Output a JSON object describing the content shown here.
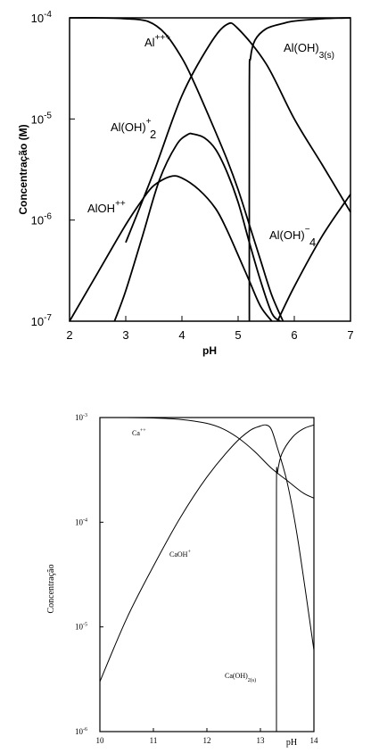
{
  "chart_data": [
    {
      "type": "line",
      "title": "",
      "xlabel": "pH",
      "ylabel": "Concentração (M)",
      "xlim": [
        2,
        7
      ],
      "ylim": [
        1e-07,
        0.0001
      ],
      "yscale": "log",
      "x_ticks": [
        "2",
        "3",
        "4",
        "5",
        "6",
        "7"
      ],
      "y_ticks": [
        {
          "base": "10",
          "exp": "-7"
        },
        {
          "base": "10",
          "exp": "-6"
        },
        {
          "base": "10",
          "exp": "-5"
        },
        {
          "base": "10",
          "exp": "-4"
        }
      ],
      "grid": false,
      "series": [
        {
          "name": "Al+++",
          "label": {
            "main": "Al",
            "sup": "+++",
            "sub": ""
          },
          "color": "#000000",
          "x": [
            2.0,
            2.5,
            3.0,
            3.4,
            3.7,
            4.0,
            4.2,
            4.5,
            4.8,
            5.0,
            5.2,
            5.4,
            5.6,
            5.8
          ],
          "y": [
            0.0001,
            0.0001,
            9.8e-05,
            9.2e-05,
            7e-05,
            4e-05,
            2.4e-05,
            1e-05,
            4e-06,
            2e-06,
            9e-07,
            4e-07,
            1.8e-07,
            1e-07
          ]
        },
        {
          "name": "AlOH++",
          "label": {
            "main": "AlOH",
            "sup": "++",
            "sub": ""
          },
          "color": "#000000",
          "x": [
            2.0,
            2.5,
            3.0,
            3.3,
            3.5,
            3.8,
            4.0,
            4.3,
            4.6,
            4.8,
            5.0,
            5.2,
            5.4,
            5.6
          ],
          "y": [
            1e-07,
            3e-07,
            9e-07,
            1.6e-06,
            2.2e-06,
            2.7e-06,
            2.6e-06,
            2e-06,
            1.3e-06,
            8e-07,
            4.5e-07,
            2.5e-07,
            1.4e-07,
            1e-07
          ]
        },
        {
          "name": "Al(OH)2+",
          "label": {
            "main": "Al(OH)",
            "sup": "+",
            "sub": "2"
          },
          "color": "#000000",
          "x": [
            2.8,
            3.0,
            3.3,
            3.6,
            3.9,
            4.1,
            4.2,
            4.4,
            4.6,
            4.8,
            5.0,
            5.2,
            5.4,
            5.6,
            5.75
          ],
          "y": [
            1e-07,
            2e-07,
            7e-07,
            2.5e-06,
            5.5e-06,
            7e-06,
            7.1e-06,
            6.5e-06,
            5e-06,
            3e-06,
            1.5e-06,
            6e-07,
            2.5e-07,
            1.2e-07,
            1e-07
          ]
        },
        {
          "name": "Al(OH)4-",
          "label": {
            "main": "Al(OH)",
            "sup": "−",
            "sub": "4"
          },
          "color": "#000000",
          "x": [
            3.0,
            3.5,
            4.0,
            4.5,
            4.8,
            5.0,
            5.5,
            6.0,
            6.5,
            7.0
          ],
          "y": [
            6e-07,
            3e-06,
            1.7e-05,
            5.5e-05,
            8.6e-05,
            7.8e-05,
            3.5e-05,
            1e-05,
            3.5e-06,
            1.2e-06
          ]
        },
        {
          "name": "Al(OH)3(s)",
          "label": {
            "main": "Al(OH)",
            "sup": "",
            "sub": "3(s)"
          },
          "color": "#000000",
          "x": [
            5.2,
            5.2,
            5.22,
            5.3,
            5.5,
            5.8,
            6.0,
            6.5,
            7.0
          ],
          "y": [
            1e-07,
            2e-05,
            4e-05,
            6e-05,
            7.8e-05,
            8.8e-05,
            9.3e-05,
            9.8e-05,
            0.0001
          ]
        },
        {
          "name": "",
          "label": {
            "main": "",
            "sup": "",
            "sub": ""
          },
          "color": "#000000",
          "x": [
            5.7,
            6.0,
            6.5,
            7.0
          ],
          "y": [
            1e-07,
            2.2e-07,
            7e-07,
            1.8e-06
          ]
        }
      ]
    },
    {
      "type": "line",
      "title": "",
      "xlabel": "pH",
      "ylabel": "Concentração",
      "xlim": [
        10,
        14
      ],
      "ylim": [
        1e-06,
        0.001
      ],
      "yscale": "log",
      "x_ticks": [
        "10",
        "11",
        "12",
        "13",
        "14"
      ],
      "y_ticks": [
        {
          "base": "10",
          "exp": "-6"
        },
        {
          "base": "10",
          "exp": "-5"
        },
        {
          "base": "10",
          "exp": "-4"
        },
        {
          "base": "10",
          "exp": "-3"
        }
      ],
      "grid": false,
      "series": [
        {
          "name": "Ca++",
          "label": {
            "main": "Ca",
            "sup": "++",
            "sub": ""
          },
          "color": "#000000",
          "x": [
            10.0,
            10.5,
            11.0,
            11.5,
            12.0,
            12.3,
            12.6,
            12.9,
            13.2,
            13.5,
            13.8,
            14.0
          ],
          "y": [
            0.001,
            0.001,
            0.00099,
            0.00096,
            0.00088,
            0.00078,
            0.00063,
            0.00047,
            0.00033,
            0.00025,
            0.00019,
            0.00017
          ]
        },
        {
          "name": "CaOH+",
          "label": {
            "main": "CaOH",
            "sup": "+",
            "sub": ""
          },
          "color": "#000000",
          "x": [
            10.0,
            10.5,
            11.0,
            11.5,
            12.0,
            12.5,
            12.8,
            13.0,
            13.1,
            13.2,
            13.3,
            13.5,
            13.7,
            14.0
          ],
          "y": [
            3e-06,
            1.2e-05,
            3.8e-05,
            0.00011,
            0.00027,
            0.00055,
            0.00075,
            0.00083,
            0.00085,
            0.00078,
            0.00055,
            0.00024,
            6.8e-05,
            6e-06
          ]
        },
        {
          "name": "Ca(OH)2(s)",
          "label": {
            "main": "Ca(OH)",
            "sup": "",
            "sub": "2(s)"
          },
          "color": "#000000",
          "x": [
            13.3,
            13.3,
            13.32,
            13.4,
            13.6,
            13.8,
            14.0
          ],
          "y": [
            1e-06,
            0.0002,
            0.0003,
            0.00045,
            0.00065,
            0.00078,
            0.00085
          ]
        }
      ]
    }
  ]
}
